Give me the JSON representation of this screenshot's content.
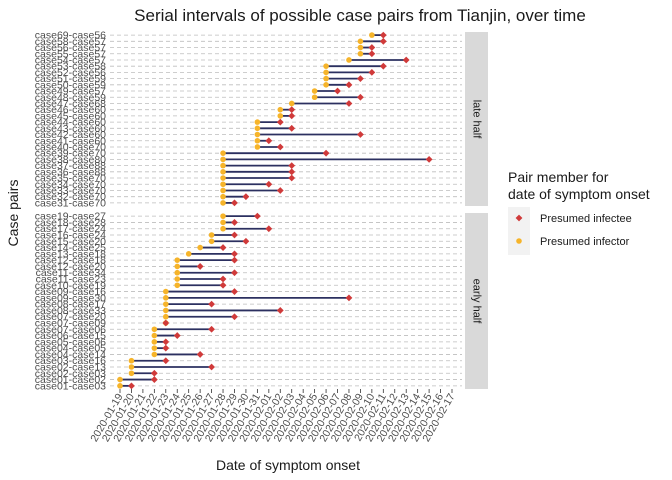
{
  "chart_data": {
    "type": "dumbbell",
    "title": "Serial intervals of possible case pairs from Tianjin, over time",
    "xlabel": "Date of symptom onset",
    "ylabel": "Case pairs",
    "x_ticks": [
      "2020-01-19",
      "2020-01-20",
      "2020-01-21",
      "2020-01-22",
      "2020-01-23",
      "2020-01-24",
      "2020-01-25",
      "2020-01-26",
      "2020-01-27",
      "2020-01-28",
      "2020-01-29",
      "2020-01-30",
      "2020-01-31",
      "2020-02-01",
      "2020-02-02",
      "2020-02-03",
      "2020-02-04",
      "2020-02-05",
      "2020-02-06",
      "2020-02-07",
      "2020-02-08",
      "2020-02-09",
      "2020-02-10",
      "2020-02-11",
      "2020-02-12",
      "2020-02-13",
      "2020-02-14",
      "2020-02-15",
      "2020-02-16",
      "2020-02-17"
    ],
    "xlim": [
      "2020-01-19",
      "2020-02-17"
    ],
    "grid": "horizontal dashed",
    "legend": {
      "title": [
        "Pair member for",
        "date of symptom onset"
      ],
      "position": "right",
      "entries": [
        {
          "label": "Presumed infectee",
          "color": "#d03a3a",
          "shape": "diamond"
        },
        {
          "label": "Presumed infector",
          "color": "#f6b42a",
          "shape": "circle"
        }
      ]
    },
    "colors": {
      "segment": "#2c3060",
      "infectee": "#d03a3a",
      "infector": "#f6b42a",
      "strip": "#d9d9d9",
      "grid": "#bdbdbd"
    },
    "panels": [
      {
        "label": "late half",
        "pairs": [
          {
            "label": "case69-case56",
            "infector": "2020-02-10",
            "infectee": "2020-02-11"
          },
          {
            "label": "case58-case57",
            "infector": "2020-02-09",
            "infectee": "2020-02-11"
          },
          {
            "label": "case56-case57",
            "infector": "2020-02-09",
            "infectee": "2020-02-10"
          },
          {
            "label": "case55-case57",
            "infector": "2020-02-09",
            "infectee": "2020-02-10"
          },
          {
            "label": "case54-case57",
            "infector": "2020-02-08",
            "infectee": "2020-02-13"
          },
          {
            "label": "case53-case58",
            "infector": "2020-02-06",
            "infectee": "2020-02-11"
          },
          {
            "label": "case52-case56",
            "infector": "2020-02-06",
            "infectee": "2020-02-10"
          },
          {
            "label": "case51-case59",
            "infector": "2020-02-06",
            "infectee": "2020-02-09"
          },
          {
            "label": "case50-case59",
            "infector": "2020-02-06",
            "infectee": "2020-02-08"
          },
          {
            "label": "case49-case57",
            "infector": "2020-02-05",
            "infectee": "2020-02-07"
          },
          {
            "label": "case48-case59",
            "infector": "2020-02-05",
            "infectee": "2020-02-09"
          },
          {
            "label": "case47-case68",
            "infector": "2020-02-03",
            "infectee": "2020-02-08"
          },
          {
            "label": "case46-case60",
            "infector": "2020-02-02",
            "infectee": "2020-02-03"
          },
          {
            "label": "case45-case60",
            "infector": "2020-02-02",
            "infectee": "2020-02-03"
          },
          {
            "label": "case44-case60",
            "infector": "2020-01-31",
            "infectee": "2020-02-02"
          },
          {
            "label": "case43-case60",
            "infector": "2020-01-31",
            "infectee": "2020-02-03"
          },
          {
            "label": "case42-case60",
            "infector": "2020-01-31",
            "infectee": "2020-02-09"
          },
          {
            "label": "case41-case60",
            "infector": "2020-01-31",
            "infectee": "2020-02-01"
          },
          {
            "label": "case40-case70",
            "infector": "2020-01-31",
            "infectee": "2020-02-02"
          },
          {
            "label": "case39-case70",
            "infector": "2020-01-28",
            "infectee": "2020-02-06"
          },
          {
            "label": "case38-case80",
            "infector": "2020-01-28",
            "infectee": "2020-02-15"
          },
          {
            "label": "case37-case88",
            "infector": "2020-01-28",
            "infectee": "2020-02-03"
          },
          {
            "label": "case36-case88",
            "infector": "2020-01-28",
            "infectee": "2020-02-03"
          },
          {
            "label": "case35-case70",
            "infector": "2020-01-28",
            "infectee": "2020-02-03"
          },
          {
            "label": "case34-case70",
            "infector": "2020-01-28",
            "infectee": "2020-02-01"
          },
          {
            "label": "case33-case70",
            "infector": "2020-01-28",
            "infectee": "2020-02-02"
          },
          {
            "label": "case32-case70",
            "infector": "2020-01-28",
            "infectee": "2020-01-30"
          },
          {
            "label": "case31-case70",
            "infector": "2020-01-28",
            "infectee": "2020-01-29"
          }
        ]
      },
      {
        "label": "early half",
        "pairs": [
          {
            "label": "case19-case27",
            "infector": "2020-01-28",
            "infectee": "2020-01-31"
          },
          {
            "label": "case18-case28",
            "infector": "2020-01-28",
            "infectee": "2020-01-29"
          },
          {
            "label": "case17-case24",
            "infector": "2020-01-28",
            "infectee": "2020-02-01"
          },
          {
            "label": "case16-case24",
            "infector": "2020-01-27",
            "infectee": "2020-01-29"
          },
          {
            "label": "case15-case20",
            "infector": "2020-01-27",
            "infectee": "2020-01-30"
          },
          {
            "label": "case14-case25",
            "infector": "2020-01-26",
            "infectee": "2020-01-28"
          },
          {
            "label": "case13-case18",
            "infector": "2020-01-25",
            "infectee": "2020-01-29"
          },
          {
            "label": "case12-case18",
            "infector": "2020-01-24",
            "infectee": "2020-01-29"
          },
          {
            "label": "case12-case20",
            "infector": "2020-01-24",
            "infectee": "2020-01-26"
          },
          {
            "label": "case11-case34",
            "infector": "2020-01-24",
            "infectee": "2020-01-29"
          },
          {
            "label": "case11-case23",
            "infector": "2020-01-24",
            "infectee": "2020-01-28"
          },
          {
            "label": "case10-case19",
            "infector": "2020-01-24",
            "infectee": "2020-01-28"
          },
          {
            "label": "case09-case16",
            "infector": "2020-01-23",
            "infectee": "2020-01-29"
          },
          {
            "label": "case09-case30",
            "infector": "2020-01-23",
            "infectee": "2020-02-08"
          },
          {
            "label": "case08-case17",
            "infector": "2020-01-23",
            "infectee": "2020-01-27"
          },
          {
            "label": "case08-case33",
            "infector": "2020-01-23",
            "infectee": "2020-02-02"
          },
          {
            "label": "case07-case20",
            "infector": "2020-01-23",
            "infectee": "2020-01-29"
          },
          {
            "label": "case07-case09",
            "infector": "2020-01-23",
            "infectee": "2020-01-23"
          },
          {
            "label": "case07-case06",
            "infector": "2020-01-22",
            "infectee": "2020-01-27"
          },
          {
            "label": "case06-case15",
            "infector": "2020-01-22",
            "infectee": "2020-01-24"
          },
          {
            "label": "case05-case06",
            "infector": "2020-01-22",
            "infectee": "2020-01-23"
          },
          {
            "label": "case04-case05",
            "infector": "2020-01-22",
            "infectee": "2020-01-23"
          },
          {
            "label": "case04-case14",
            "infector": "2020-01-22",
            "infectee": "2020-01-26"
          },
          {
            "label": "case03-case16",
            "infector": "2020-01-20",
            "infectee": "2020-01-23"
          },
          {
            "label": "case02-case13",
            "infector": "2020-01-20",
            "infectee": "2020-01-27"
          },
          {
            "label": "case02-case03",
            "infector": "2020-01-20",
            "infectee": "2020-01-22"
          },
          {
            "label": "case01-case02",
            "infector": "2020-01-19",
            "infectee": "2020-01-22"
          },
          {
            "label": "case01-case03",
            "infector": "2020-01-19",
            "infectee": "2020-01-20"
          }
        ]
      }
    ]
  }
}
